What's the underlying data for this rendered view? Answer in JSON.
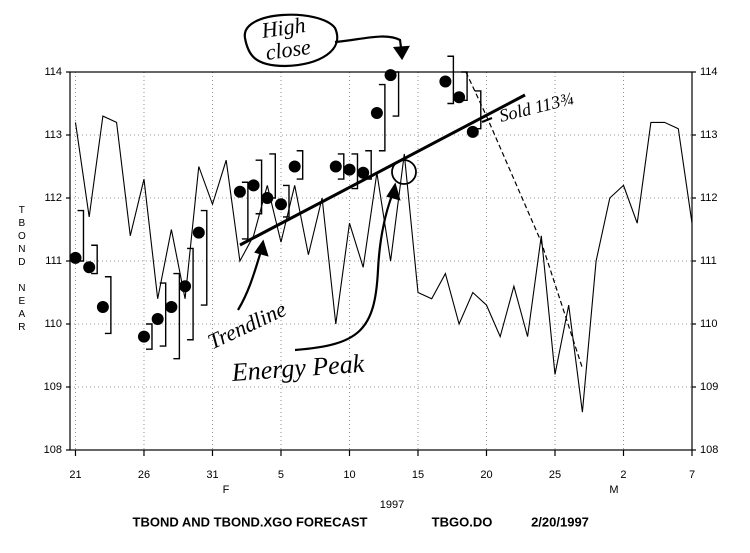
{
  "chart_data": {
    "type": "line",
    "y_label": "TBOND NEAR",
    "title": "TBOND AND TBOND.XGO FORECAST",
    "file_label": "TBGO.DO",
    "date_label": "2/20/1997",
    "year_label": "1997",
    "month_labels": [
      "F",
      "M"
    ],
    "xlim": [
      -0.4,
      45
    ],
    "xticks": [
      {
        "value": 0,
        "label": "21"
      },
      {
        "value": 5,
        "label": "26"
      },
      {
        "value": 10,
        "label": "31"
      },
      {
        "value": 15,
        "label": "5"
      },
      {
        "value": 20,
        "label": "10"
      },
      {
        "value": 25,
        "label": "15"
      },
      {
        "value": 30,
        "label": "20"
      },
      {
        "value": 35,
        "label": "25"
      },
      {
        "value": 40,
        "label": "2"
      },
      {
        "value": 45,
        "label": "7"
      }
    ],
    "ylim": [
      108,
      114
    ],
    "yticks": [
      108,
      109,
      110,
      111,
      112,
      113,
      114
    ],
    "grid": true,
    "series": [
      {
        "color": "#000000",
        "style": "line",
        "x": [
          0,
          1,
          2,
          3,
          4,
          5,
          6,
          7,
          8,
          9,
          10,
          11,
          12,
          13,
          14,
          15,
          16,
          17,
          18,
          19,
          20,
          21,
          22,
          23,
          24,
          25,
          26,
          27,
          28,
          29,
          30,
          31,
          32,
          33,
          34,
          35,
          36,
          37,
          38,
          39,
          40,
          41,
          42,
          43,
          44,
          45
        ],
        "values": [
          113.2,
          111.7,
          113.3,
          113.2,
          111.4,
          112.3,
          110.4,
          111.5,
          110.4,
          112.5,
          111.9,
          112.6,
          111.0,
          111.4,
          112.2,
          111.3,
          112.2,
          111.1,
          112.0,
          110.0,
          111.6,
          110.9,
          112.4,
          111.0,
          112.7,
          110.5,
          110.4,
          110.8,
          110.0,
          110.5,
          110.3,
          109.8,
          110.6,
          109.8,
          111.4,
          109.2,
          110.3,
          108.6,
          111.0,
          112.0,
          112.2,
          111.6,
          113.2,
          113.2,
          113.1,
          111.6
        ]
      },
      {
        "color": "#000000",
        "style": "dot",
        "x": [
          0,
          1,
          2,
          5,
          6,
          7,
          8,
          9,
          12,
          13,
          14,
          15,
          16,
          19,
          20,
          21,
          22,
          23,
          27,
          28,
          29
        ],
        "values": [
          111.05,
          110.9,
          110.27,
          109.8,
          110.08,
          110.27,
          110.6,
          111.45,
          112.1,
          112.2,
          112.0,
          111.9,
          112.5,
          112.5,
          112.45,
          112.4,
          113.35,
          113.95,
          113.85,
          113.6,
          113.05
        ],
        "high": [
          111.8,
          111.25,
          110.75,
          110.0,
          110.65,
          110.8,
          111.2,
          111.8,
          112.25,
          112.6,
          112.7,
          112.2,
          112.75,
          112.7,
          112.7,
          112.75,
          113.8,
          114.0,
          114.25,
          114.0,
          113.7
        ],
        "low": [
          111.0,
          110.8,
          109.85,
          109.6,
          109.65,
          109.45,
          109.75,
          110.3,
          111.35,
          111.75,
          112.0,
          111.7,
          112.3,
          112.3,
          112.15,
          112.3,
          112.75,
          113.3,
          113.5,
          113.55,
          113.1
        ]
      },
      {
        "color": "#000000",
        "style": "dash",
        "x": [
          28.5,
          30,
          34,
          37
        ],
        "values": [
          114.0,
          113.3,
          111.3,
          109.3
        ]
      }
    ],
    "annotations": {
      "high_close": [
        "High",
        "close"
      ],
      "sold": "Sold 113¾",
      "trendline": "Trendline",
      "energy_peak": "Energy Peak"
    }
  }
}
